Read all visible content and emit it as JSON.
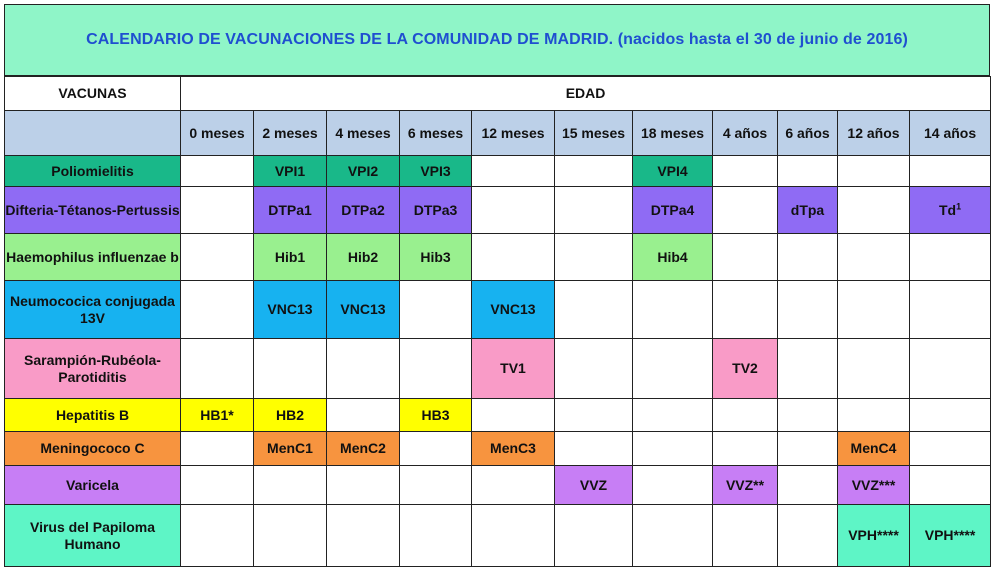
{
  "title": "CALENDARIO DE VACUNACIONES DE LA COMUNIDAD DE MADRID. (nacidos hasta el 30 de junio de 2016)",
  "header": {
    "vacunas": "VACUNAS",
    "edad": "EDAD"
  },
  "ages": [
    "0 meses",
    "2 meses",
    "4 meses",
    "6 meses",
    "12 meses",
    "15 meses",
    "18 meses",
    "4 años",
    "6 años",
    "12 años",
    "14 años"
  ],
  "rows": [
    {
      "name": "Poliomielitis",
      "color": "#19b889",
      "height": 31,
      "cells": [
        "",
        "VPI1",
        "VPI2",
        "VPI3",
        "",
        "",
        "VPI4",
        "",
        "",
        "",
        ""
      ]
    },
    {
      "name": "Difteria-Tétanos-Pertussis",
      "color": "#8f6bf4",
      "height": 47,
      "cells": [
        "",
        "DTPa1",
        "DTPa2",
        "DTPa3",
        "",
        "",
        "DTPa4",
        "",
        "dTpa",
        "",
        "Td"
      ]
    },
    {
      "name": "Haemophilus influenzae b",
      "color": "#99f08f",
      "height": 47,
      "cells": [
        "",
        "Hib1",
        "Hib2",
        "Hib3",
        "",
        "",
        "Hib4",
        "",
        "",
        "",
        ""
      ]
    },
    {
      "name": "Neumococica conjugada 13V",
      "color": "#17b2f0",
      "height": 58,
      "cells": [
        "",
        "VNC13",
        "VNC13",
        "",
        "VNC13",
        "",
        "",
        "",
        "",
        "",
        ""
      ]
    },
    {
      "name": "Sarampión-Rubéola-Parotiditis",
      "color": "#f99bc7",
      "height": 60,
      "cells": [
        "",
        "",
        "",
        "",
        "TV1",
        "",
        "",
        "TV2",
        "",
        "",
        ""
      ]
    },
    {
      "name": "Hepatitis B",
      "color": "#ffff00",
      "height": 33,
      "cells": [
        "HB1*",
        "HB2",
        "",
        "HB3",
        "",
        "",
        "",
        "",
        "",
        "",
        ""
      ]
    },
    {
      "name": "Meningococo C",
      "color": "#f7943f",
      "height": 34,
      "cells": [
        "",
        "MenC1",
        "MenC2",
        "",
        "MenC3",
        "",
        "",
        "",
        "",
        "MenC4",
        ""
      ]
    },
    {
      "name": "Varicela",
      "color": "#c77ef5",
      "height": 39,
      "cells": [
        "",
        "",
        "",
        "",
        "",
        "VVZ",
        "",
        "VVZ**",
        "",
        "VVZ***",
        ""
      ]
    },
    {
      "name": "Virus del Papiloma Humano",
      "color": "#5ef5c6",
      "height": 62,
      "cells": [
        "",
        "",
        "",
        "",
        "",
        "",
        "",
        "",
        "",
        "VPH****",
        "VPH****"
      ]
    }
  ],
  "footnote_marks": {
    "Td": "1"
  }
}
